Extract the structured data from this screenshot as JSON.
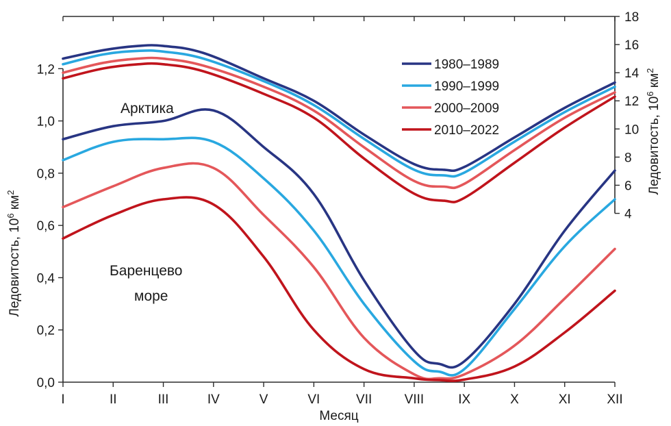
{
  "chart_data": {
    "type": "line",
    "xlabel": "Месяц",
    "categories": [
      "I",
      "II",
      "III",
      "IV",
      "V",
      "VI",
      "VII",
      "VIII",
      "IX",
      "X",
      "XI",
      "XII"
    ],
    "left_axis": {
      "label": "Ледовитость, 10",
      "label_sup": "6",
      "label_unit": " км",
      "label_unit_sup": "2",
      "ylim": [
        0,
        1.4
      ],
      "ticks": [
        "0,0",
        "0,2",
        "0,4",
        "0,6",
        "0,8",
        "1,0",
        "1,2"
      ],
      "tick_values": [
        0,
        0.2,
        0.4,
        0.6,
        0.8,
        1.0,
        1.2
      ]
    },
    "right_axis": {
      "label": "Ледовитость, 10",
      "label_sup": "6",
      "label_unit": " км",
      "label_unit_sup": "2",
      "ylim": [
        -8,
        18
      ],
      "ticks": [
        "4",
        "6",
        "8",
        "10",
        "12",
        "14",
        "16",
        "18"
      ],
      "tick_values": [
        4,
        6,
        8,
        10,
        12,
        14,
        16,
        18
      ]
    },
    "groups": [
      {
        "label": "Арктика",
        "axis": "right",
        "series": [
          {
            "name": "1980–1989",
            "color": "#283583",
            "values": [
              [
                0,
                15.0
              ],
              [
                0.8,
                15.6
              ],
              [
                1.5,
                15.9
              ],
              [
                2.0,
                15.9
              ],
              [
                2.8,
                15.4
              ],
              [
                4.0,
                13.6
              ],
              [
                5.0,
                12.0
              ],
              [
                6.0,
                9.6
              ],
              [
                7.0,
                7.5
              ],
              [
                7.6,
                7.1
              ],
              [
                8.0,
                7.3
              ],
              [
                9.0,
                9.4
              ],
              [
                10.0,
                11.5
              ],
              [
                11.0,
                13.3
              ]
            ]
          },
          {
            "name": "1990–1999",
            "color": "#29a8e0",
            "values": [
              [
                0,
                14.6
              ],
              [
                0.8,
                15.3
              ],
              [
                1.5,
                15.55
              ],
              [
                2.0,
                15.5
              ],
              [
                2.8,
                15.0
              ],
              [
                4.0,
                13.4
              ],
              [
                5.0,
                11.7
              ],
              [
                6.0,
                9.3
              ],
              [
                7.0,
                7.1
              ],
              [
                7.6,
                6.7
              ],
              [
                8.0,
                6.9
              ],
              [
                9.0,
                9.1
              ],
              [
                10.0,
                11.2
              ],
              [
                11.0,
                13.0
              ]
            ]
          },
          {
            "name": "2000–2009",
            "color": "#e4575a",
            "values": [
              [
                0,
                14.0
              ],
              [
                0.8,
                14.7
              ],
              [
                1.5,
                15.0
              ],
              [
                2.0,
                15.0
              ],
              [
                2.8,
                14.5
              ],
              [
                4.0,
                13.0
              ],
              [
                5.0,
                11.3
              ],
              [
                6.0,
                8.7
              ],
              [
                7.0,
                6.3
              ],
              [
                7.6,
                5.9
              ],
              [
                8.0,
                6.1
              ],
              [
                9.0,
                8.5
              ],
              [
                10.0,
                10.8
              ],
              [
                11.0,
                12.6
              ]
            ]
          },
          {
            "name": "2010–2022",
            "color": "#c0141c",
            "values": [
              [
                0,
                13.6
              ],
              [
                0.8,
                14.3
              ],
              [
                1.5,
                14.6
              ],
              [
                2.0,
                14.6
              ],
              [
                2.8,
                14.1
              ],
              [
                4.0,
                12.5
              ],
              [
                5.0,
                10.8
              ],
              [
                6.0,
                7.9
              ],
              [
                7.0,
                5.4
              ],
              [
                7.6,
                4.9
              ],
              [
                8.0,
                5.1
              ],
              [
                9.0,
                7.6
              ],
              [
                10.0,
                10.1
              ],
              [
                11.0,
                12.3
              ]
            ]
          }
        ]
      },
      {
        "label": "Баренцево море",
        "axis": "left",
        "series": [
          {
            "name": "1980–1989",
            "color": "#283583",
            "values": [
              [
                0,
                0.93
              ],
              [
                1,
                0.98
              ],
              [
                2,
                1.0
              ],
              [
                3,
                1.04
              ],
              [
                4,
                0.9
              ],
              [
                5,
                0.72
              ],
              [
                6,
                0.39
              ],
              [
                7,
                0.12
              ],
              [
                7.5,
                0.07
              ],
              [
                8,
                0.08
              ],
              [
                9,
                0.3
              ],
              [
                10,
                0.58
              ],
              [
                11,
                0.81
              ]
            ]
          },
          {
            "name": "1990–1999",
            "color": "#29a8e0",
            "values": [
              [
                0,
                0.85
              ],
              [
                1,
                0.92
              ],
              [
                2,
                0.93
              ],
              [
                3,
                0.92
              ],
              [
                4,
                0.78
              ],
              [
                5,
                0.58
              ],
              [
                6,
                0.3
              ],
              [
                7,
                0.08
              ],
              [
                7.5,
                0.04
              ],
              [
                8,
                0.05
              ],
              [
                9,
                0.28
              ],
              [
                10,
                0.52
              ],
              [
                11,
                0.7
              ]
            ]
          },
          {
            "name": "2000–2009",
            "color": "#e4575a",
            "values": [
              [
                0,
                0.67
              ],
              [
                1,
                0.75
              ],
              [
                2,
                0.82
              ],
              [
                3,
                0.82
              ],
              [
                4,
                0.64
              ],
              [
                5,
                0.44
              ],
              [
                6,
                0.17
              ],
              [
                7,
                0.03
              ],
              [
                7.5,
                0.015
              ],
              [
                8,
                0.03
              ],
              [
                9,
                0.14
              ],
              [
                10,
                0.32
              ],
              [
                11,
                0.51
              ]
            ]
          },
          {
            "name": "2010–2022",
            "color": "#c0141c",
            "values": [
              [
                0,
                0.55
              ],
              [
                1,
                0.64
              ],
              [
                2,
                0.7
              ],
              [
                3,
                0.68
              ],
              [
                4,
                0.48
              ],
              [
                5,
                0.2
              ],
              [
                6,
                0.05
              ],
              [
                7,
                0.015
              ],
              [
                7.5,
                0.008
              ],
              [
                8,
                0.01
              ],
              [
                9,
                0.06
              ],
              [
                10,
                0.19
              ],
              [
                11,
                0.35
              ]
            ]
          }
        ]
      }
    ],
    "legend": {
      "placement": "top-right",
      "items": [
        {
          "name": "1980–1989",
          "color": "#283583"
        },
        {
          "name": "1990–1999",
          "color": "#29a8e0"
        },
        {
          "name": "2000–2009",
          "color": "#e4575a"
        },
        {
          "name": "2010–2022",
          "color": "#c0141c"
        }
      ]
    },
    "grid": false
  }
}
